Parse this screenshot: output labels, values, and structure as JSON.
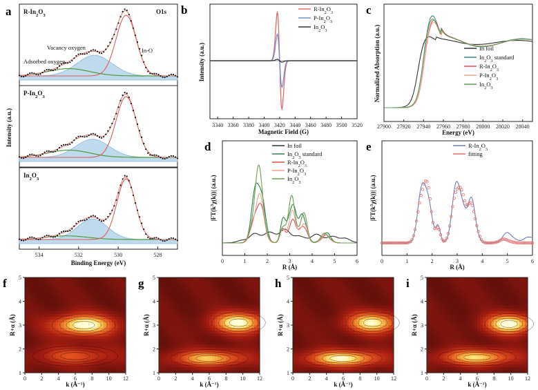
{
  "chart_data": [
    {
      "panel": "a",
      "type": "line",
      "title": "O1s",
      "xlabel": "Binding Energy (eV)",
      "ylabel": "Intensity (a.u.)",
      "xlim": [
        535,
        527
      ],
      "xticks": [
        534,
        532,
        530,
        528
      ],
      "subplots": [
        {
          "name": "R-In2O3",
          "label_base": "R-In",
          "label_sub1": "2",
          "label_mid": "O",
          "label_sub2": "3",
          "annotations": {
            "vacancy": "Vacancy oxygen",
            "adsorbed": "Adsorbed oxygen",
            "lattice": "In-O"
          },
          "components": [
            {
              "center": 529.6,
              "height": 1.0,
              "fwhm": 1.2
            },
            {
              "center": 531.2,
              "height": 0.34,
              "fwhm": 2.1
            },
            {
              "center": 532.5,
              "height": 0.12,
              "fwhm": 2.5
            }
          ]
        },
        {
          "name": "P-In2O3",
          "label_base": "P-In",
          "label_sub1": "2",
          "label_mid": "O",
          "label_sub2": "3",
          "components": [
            {
              "center": 529.6,
              "height": 1.0,
              "fwhm": 1.2
            },
            {
              "center": 531.3,
              "height": 0.3,
              "fwhm": 2.0
            },
            {
              "center": 532.5,
              "height": 0.12,
              "fwhm": 2.5
            }
          ]
        },
        {
          "name": "In2O3",
          "label_base": "In",
          "label_sub1": "2",
          "label_mid": "O",
          "label_sub2": "3",
          "components": [
            {
              "center": 529.6,
              "height": 1.0,
              "fwhm": 1.1
            },
            {
              "center": 531.3,
              "height": 0.34,
              "fwhm": 1.8
            },
            {
              "center": 532.6,
              "height": 0.06,
              "fwhm": 2.5
            }
          ]
        }
      ]
    },
    {
      "panel": "b",
      "type": "line",
      "xlabel": "Magnetic Field (G)",
      "ylabel": "Intensity (a.u.)",
      "xlim": [
        3330,
        3520
      ],
      "xticks": [
        3340,
        3360,
        3380,
        3400,
        3420,
        3440,
        3460,
        3480,
        3500,
        3520
      ],
      "resonance_center": 3420,
      "series": [
        {
          "name": "R-In2O3",
          "label_base": "R-In",
          "label_sub1": "2",
          "label_mid": "O",
          "label_sub2": "3",
          "color": "#e26a6a",
          "amplitude": 1.0
        },
        {
          "name": "P-In2O3",
          "label_base": "P-In",
          "label_sub1": "2",
          "label_mid": "O",
          "label_sub2": "3",
          "color": "#6f8fd0",
          "amplitude": 0.55
        },
        {
          "name": "In2O3",
          "label_base": "In",
          "label_sub1": "2",
          "label_mid": "O",
          "label_sub2": "3",
          "color": "#333333",
          "amplitude": 0.03
        }
      ]
    },
    {
      "panel": "c",
      "type": "line",
      "xlabel": "Energy (eV)",
      "ylabel": "Normalized Absorption (a.u.)",
      "xlim": [
        27900,
        28050
      ],
      "xticks": [
        27900,
        27920,
        27940,
        27960,
        27980,
        28000,
        28020,
        28040
      ],
      "series": [
        {
          "name": "In foil",
          "label_base": "In foil",
          "color": "#333333",
          "edge": 27934,
          "peak": 1.12,
          "osc": 0.06
        },
        {
          "name": "In2O3 standard",
          "label_base": "In",
          "label_sub1": "2",
          "label_mid": "O",
          "label_sub2": "3",
          "label_tail": " standard",
          "color": "#3a8a8a",
          "edge": 27939,
          "peak": 1.45,
          "osc": 0.12
        },
        {
          "name": "R-In2O3",
          "label_base": "R-In",
          "label_sub1": "2",
          "label_mid": "O",
          "label_sub2": "3",
          "color": "#d9534f",
          "edge": 27940,
          "peak": 1.38,
          "osc": 0.11
        },
        {
          "name": "P-In2O3",
          "label_base": "P-In",
          "label_sub1": "2",
          "label_mid": "O",
          "label_sub2": "3",
          "color": "#f2a090",
          "edge": 27940,
          "peak": 1.35,
          "osc": 0.1
        },
        {
          "name": "In2O3",
          "label_base": "In",
          "label_sub1": "2",
          "label_mid": "O",
          "label_sub2": "3",
          "color": "#5c9e5c",
          "edge": 27939,
          "peak": 1.4,
          "osc": 0.11
        }
      ]
    },
    {
      "panel": "d",
      "type": "line",
      "xlabel": "R (Å)",
      "ylabel": "|FT(k³χ(k))| (a.u.)",
      "ylabel_main": "|FT(k",
      "ylabel_sup": "3",
      "ylabel_tail": "χ(k))| (a.u.)",
      "xlim": [
        0,
        6
      ],
      "xticks": [
        0,
        1,
        2,
        3,
        4,
        5,
        6
      ],
      "series": [
        {
          "name": "In foil",
          "label_base": "In foil",
          "color": "#333333",
          "peaks": [
            [
              1.6,
              0.12,
              0.5
            ],
            [
              2.8,
              0.16,
              0.5
            ],
            [
              4.2,
              0.1,
              0.4
            ],
            [
              5.2,
              0.08,
              0.4
            ]
          ]
        },
        {
          "name": "In2O3 standard",
          "label_base": "In",
          "label_sub1": "2",
          "label_mid": "O",
          "label_sub2": "3",
          "label_tail": " standard",
          "color": "#2f7f4f",
          "peaks": [
            [
              1.6,
              1.0,
              0.22
            ],
            [
              2.7,
              0.28,
              0.12
            ],
            [
              3.1,
              0.62,
              0.16
            ],
            [
              3.6,
              0.42,
              0.16
            ],
            [
              4.6,
              0.14,
              0.2
            ]
          ]
        },
        {
          "name": "R-In2O3",
          "label_base": "R-In",
          "label_sub1": "2",
          "label_mid": "O",
          "label_sub2": "3",
          "color": "#d9534f",
          "peaks": [
            [
              1.6,
              0.62,
              0.22
            ],
            [
              2.7,
              0.18,
              0.12
            ],
            [
              3.1,
              0.32,
              0.16
            ],
            [
              3.6,
              0.28,
              0.16
            ],
            [
              4.6,
              0.1,
              0.2
            ]
          ]
        },
        {
          "name": "P-In2O3",
          "label_base": "P-In",
          "label_sub1": "2",
          "label_mid": "O",
          "label_sub2": "3",
          "color": "#f2a090",
          "peaks": [
            [
              1.6,
              0.66,
              0.22
            ],
            [
              2.7,
              0.2,
              0.12
            ],
            [
              3.1,
              0.4,
              0.16
            ],
            [
              3.6,
              0.3,
              0.16
            ],
            [
              4.6,
              0.1,
              0.2
            ]
          ]
        },
        {
          "name": "In2O3",
          "label_base": "In",
          "label_sub1": "2",
          "label_mid": "O",
          "label_sub2": "3",
          "color": "#6b9e4d",
          "peaks": [
            [
              1.6,
              0.95,
              0.22
            ],
            [
              2.7,
              0.26,
              0.12
            ],
            [
              3.1,
              0.58,
              0.16
            ],
            [
              3.6,
              0.4,
              0.16
            ],
            [
              4.6,
              0.13,
              0.2
            ]
          ]
        }
      ]
    },
    {
      "panel": "e",
      "type": "line",
      "xlabel": "R (Å)",
      "ylabel": "|FT(k³χ(k))| (a.u.)",
      "ylabel_main": "|FT(k",
      "ylabel_sup": "3",
      "ylabel_tail": "χ(k))| (a.u.)",
      "xlim": [
        0,
        6
      ],
      "xticks": [
        0,
        1,
        2,
        3,
        4,
        5,
        6
      ],
      "series": [
        {
          "name": "R-In2O3",
          "label_base": "R-In",
          "label_sub1": "2",
          "label_mid": "O",
          "label_sub2": "3",
          "color": "#6f7fb0",
          "peaks": [
            [
              1.7,
              1.0,
              0.2
            ],
            [
              2.25,
              0.22,
              0.09
            ],
            [
              3.05,
              0.95,
              0.2
            ],
            [
              3.6,
              0.55,
              0.16
            ],
            [
              5.05,
              0.14,
              0.22
            ],
            [
              5.9,
              0.1,
              0.2
            ]
          ]
        },
        {
          "name": "fitting",
          "label_base": "fitting",
          "color": "#e07070",
          "peaks": [
            [
              1.7,
              1.0,
              0.2
            ],
            [
              2.25,
              0.22,
              0.09
            ],
            [
              3.05,
              0.95,
              0.2
            ],
            [
              3.6,
              0.55,
              0.16
            ],
            [
              4.9,
              0.05,
              0.2
            ]
          ]
        }
      ]
    },
    {
      "panel": "f",
      "type": "heatmap",
      "xlabel": "k (Å⁻¹)",
      "ylabel": "R+α (Å)",
      "xlim": [
        0,
        12
      ],
      "ylim": [
        1,
        5
      ],
      "xticks": [
        0,
        2,
        4,
        6,
        8,
        10,
        12
      ],
      "yticks": [
        1,
        2,
        3,
        4,
        5
      ],
      "blobs": [
        {
          "k": 7.0,
          "r": 3.0,
          "amp": 1.0,
          "sk": 2.6,
          "sr": 0.32
        },
        {
          "k": 6.0,
          "r": 1.7,
          "amp": 0.45,
          "sk": 3.5,
          "sr": 0.3
        }
      ]
    },
    {
      "panel": "g",
      "type": "heatmap",
      "xlabel": "k (Å⁻¹)",
      "ylabel": "R+α (Å)",
      "xlim": [
        0,
        12
      ],
      "ylim": [
        1,
        5
      ],
      "xticks": [
        0,
        2,
        4,
        6,
        8,
        10,
        12
      ],
      "yticks": [
        1,
        2,
        3,
        4,
        5
      ],
      "blobs": [
        {
          "k": 9.5,
          "r": 3.1,
          "amp": 0.95,
          "sk": 2.2,
          "sr": 0.32
        },
        {
          "k": 6.0,
          "r": 1.6,
          "amp": 0.75,
          "sk": 3.2,
          "sr": 0.25
        }
      ]
    },
    {
      "panel": "h",
      "type": "heatmap",
      "xlabel": "k (Å⁻¹)",
      "ylabel": "R+α (Å)",
      "xlim": [
        0,
        12
      ],
      "ylim": [
        1,
        5
      ],
      "xticks": [
        0,
        2,
        4,
        6,
        8,
        10,
        12
      ],
      "yticks": [
        1,
        2,
        3,
        4,
        5
      ],
      "blobs": [
        {
          "k": 9.5,
          "r": 3.1,
          "amp": 0.9,
          "sk": 2.2,
          "sr": 0.32
        },
        {
          "k": 6.0,
          "r": 1.6,
          "amp": 0.9,
          "sk": 3.2,
          "sr": 0.25
        }
      ]
    },
    {
      "panel": "i",
      "type": "heatmap",
      "xlabel": "k (Å⁻¹)",
      "ylabel": "R+α (Å)",
      "xlim": [
        0,
        12
      ],
      "ylim": [
        1,
        5
      ],
      "xticks": [
        0,
        2,
        4,
        6,
        8,
        10,
        12
      ],
      "yticks": [
        1,
        2,
        3,
        4,
        5
      ],
      "blobs": [
        {
          "k": 9.8,
          "r": 3.05,
          "amp": 1.0,
          "sk": 2.0,
          "sr": 0.3
        },
        {
          "k": 6.0,
          "r": 1.65,
          "amp": 0.8,
          "sk": 3.2,
          "sr": 0.25
        }
      ]
    }
  ],
  "palette": {
    "xps_lattice": "#e05a5a",
    "xps_vacancy": "#a8cde6",
    "xps_adsorbed": "#4e9a3a",
    "xps_dots": "#111111",
    "text": "#111111"
  }
}
